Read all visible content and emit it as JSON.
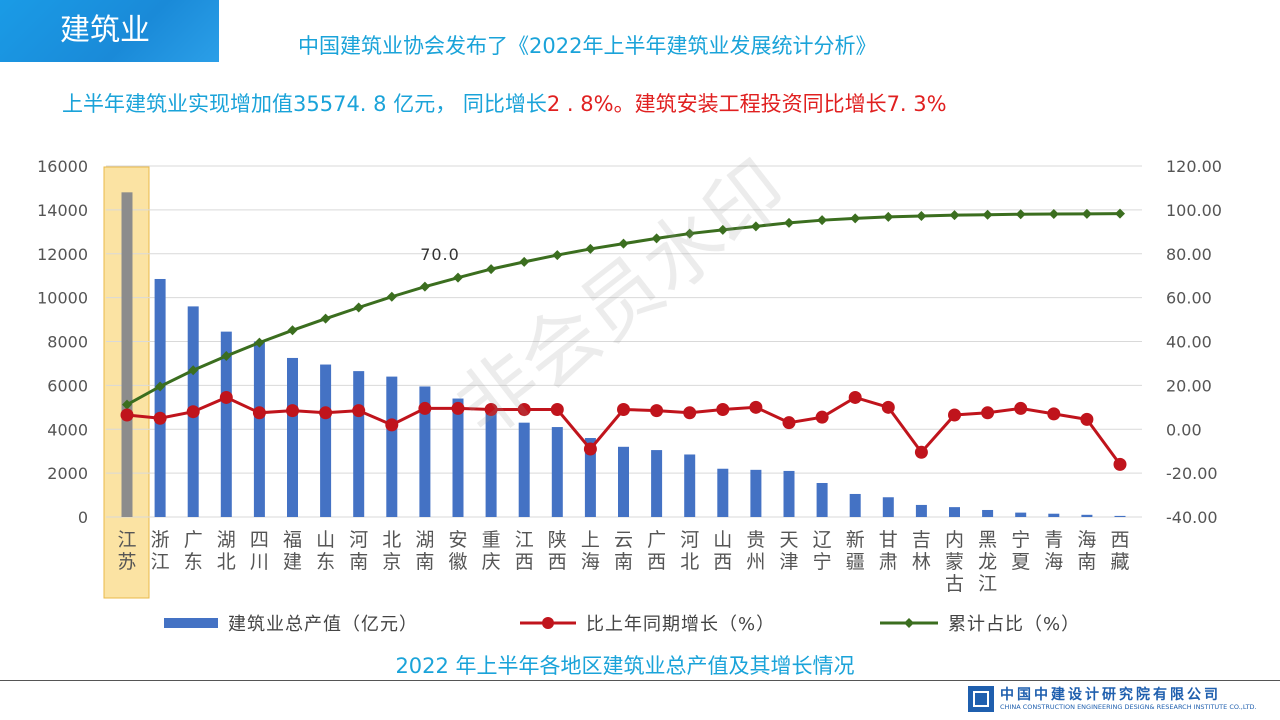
{
  "section_badge": "建筑业",
  "header_title": "中国建筑业协会发布了《2022年上半年建筑业发展统计分析》",
  "summary": {
    "part1": "上半年建筑业实现增加值35574. 8 亿元， 同比增长",
    "part2": "2 . 8%。建筑安装工程投资同比增长7. 3%"
  },
  "chart_data": {
    "type": "bar",
    "categories": [
      "江苏",
      "浙江",
      "广东",
      "湖北",
      "四川",
      "福建",
      "山东",
      "河南",
      "北京",
      "湖南",
      "安徽",
      "重庆",
      "江西",
      "陕西",
      "上海",
      "云南",
      "广西",
      "河北",
      "山西",
      "贵州",
      "天津",
      "辽宁",
      "新疆",
      "甘肃",
      "吉林",
      "内蒙古",
      "黑龙江",
      "宁夏",
      "青海",
      "海南",
      "西藏"
    ],
    "series": [
      {
        "name": "建筑业总产值（亿元）",
        "type": "bar",
        "axis": "left",
        "color": "#4472c4",
        "values": [
          14800,
          10850,
          9600,
          8450,
          8000,
          7250,
          6950,
          6650,
          6400,
          5950,
          5400,
          5050,
          4300,
          4100,
          3600,
          3200,
          3050,
          2850,
          2200,
          2150,
          2100,
          1550,
          1050,
          900,
          550,
          450,
          320,
          200,
          150,
          100,
          50
        ]
      },
      {
        "name": "比上年同期增长（%）",
        "type": "line",
        "axis": "right",
        "color": "#c0141c",
        "values": [
          6.5,
          5.0,
          8.0,
          14.5,
          7.5,
          8.5,
          7.5,
          8.5,
          2.0,
          9.5,
          9.5,
          9.0,
          9.0,
          9.0,
          -9.0,
          9.0,
          8.5,
          7.5,
          9.0,
          10.0,
          3.0,
          5.5,
          14.5,
          10.0,
          -10.5,
          6.5,
          7.5,
          9.5,
          7.0,
          4.5,
          -16.0
        ]
      },
      {
        "name": "累计占比（%）",
        "type": "line",
        "axis": "right",
        "color": "#3b6e1f",
        "values": [
          11.2,
          19.5,
          26.9,
          33.4,
          39.5,
          45.1,
          50.4,
          55.5,
          60.4,
          65.0,
          69.1,
          73.0,
          76.3,
          79.4,
          82.2,
          84.6,
          87.0,
          89.2,
          90.9,
          92.5,
          94.1,
          95.3,
          96.1,
          96.8,
          97.2,
          97.6,
          97.8,
          98.0,
          98.1,
          98.2,
          98.3
        ]
      }
    ],
    "ylim_left": [
      0,
      16000
    ],
    "left_ticks": [
      "0",
      "2000",
      "4000",
      "6000",
      "8000",
      "10000",
      "12000",
      "14000",
      "16000"
    ],
    "ylim_right": [
      -40,
      120
    ],
    "right_ticks": [
      "-40.00",
      "-20.00",
      "0.00",
      "20.00",
      "40.00",
      "60.00",
      "80.00",
      "100.00",
      "120.00"
    ],
    "annotation": "70.0",
    "highlighted_category": "江苏",
    "grid": true,
    "legend_position": "bottom"
  },
  "caption": "2022 年上半年各地区建筑业总产值及其增长情况",
  "footer": {
    "company_cn": "中国中建设计研究院有限公司",
    "company_en": "CHINA CONSTRUCTION ENGINEERING DESIGN& RESEARCH INSTITUTE CO.,LTD."
  },
  "watermark": "非会员水印"
}
